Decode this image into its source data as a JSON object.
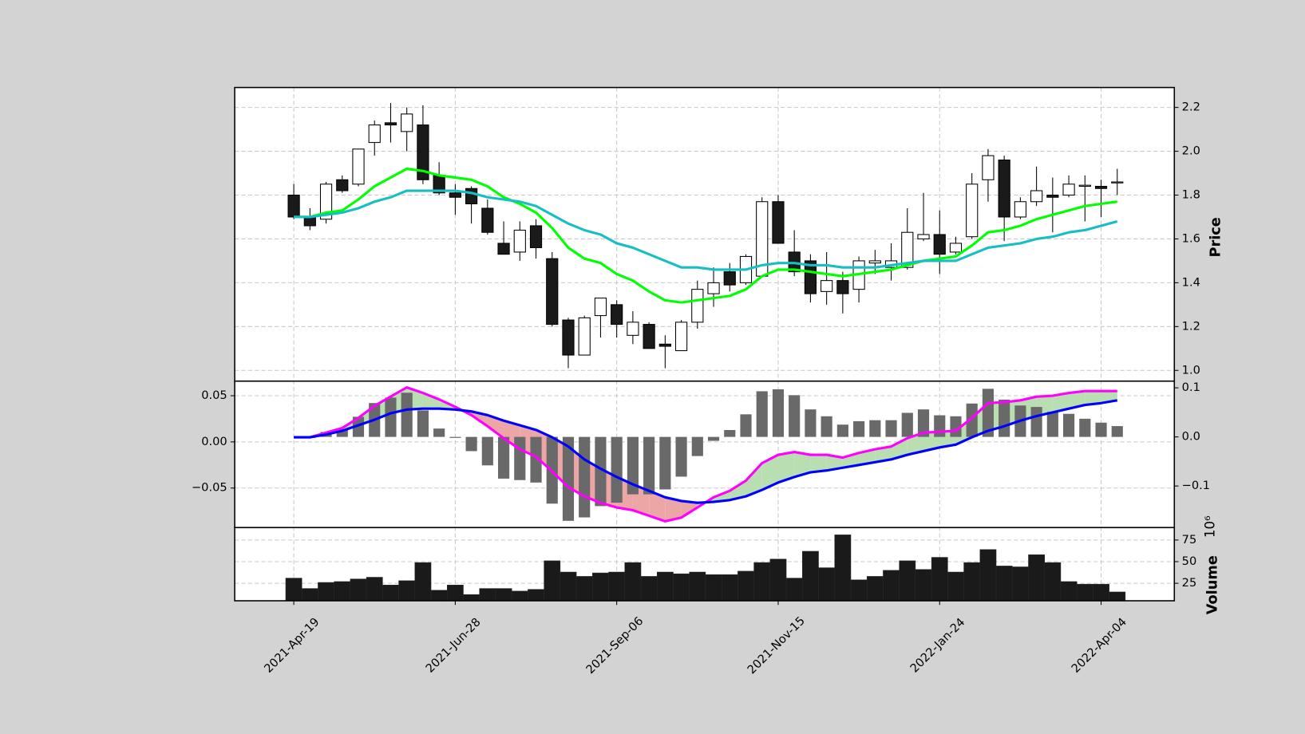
{
  "chart_data": [
    {
      "type": "candlestick",
      "ylabel": "Price",
      "grid": true,
      "categories": [
        "2021-Apr-19",
        null,
        null,
        null,
        null,
        null,
        null,
        null,
        null,
        null,
        "2021-Jun-28",
        null,
        null,
        null,
        null,
        null,
        null,
        null,
        null,
        null,
        "2021-Sep-06",
        null,
        null,
        null,
        null,
        null,
        null,
        null,
        null,
        null,
        "2021-Nov-15",
        null,
        null,
        null,
        null,
        null,
        null,
        null,
        null,
        null,
        "2022-Jan-24",
        null,
        null,
        null,
        null,
        null,
        null,
        null,
        null,
        null,
        "2022-Apr-04",
        null
      ],
      "ylim": [
        0.951,
        2.291
      ],
      "yticks": [
        {
          "value": 1,
          "label": "1.0"
        },
        1.2,
        1.4,
        1.6,
        1.8,
        {
          "value": 2,
          "label": "2.0"
        },
        2.2
      ],
      "up_color": "#ffffff",
      "down_color": "#1a1a1a",
      "open": [
        1.8,
        1.7,
        1.69,
        1.87,
        1.85,
        2.04,
        2.13,
        2.09,
        2.12,
        1.89,
        1.81,
        1.83,
        1.74,
        1.58,
        1.54,
        1.66,
        1.51,
        1.23,
        1.07,
        1.25,
        1.3,
        1.16,
        1.21,
        1.12,
        1.09,
        1.22,
        1.35,
        1.45,
        1.4,
        1.43,
        1.77,
        1.54,
        1.5,
        1.36,
        1.41,
        1.37,
        1.49,
        1.47,
        1.47,
        1.6,
        1.62,
        1.54,
        1.61,
        1.87,
        1.96,
        1.7,
        1.77,
        1.8,
        1.8,
        1.84,
        1.84,
        1.86
      ],
      "high": [
        1.85,
        1.74,
        1.86,
        1.89,
        2.01,
        2.14,
        2.22,
        2.2,
        2.21,
        1.95,
        1.85,
        1.84,
        1.78,
        1.68,
        1.68,
        1.69,
        1.54,
        1.24,
        1.25,
        1.33,
        1.32,
        1.27,
        1.22,
        1.16,
        1.23,
        1.41,
        1.47,
        1.49,
        1.53,
        1.79,
        1.8,
        1.64,
        1.53,
        1.54,
        1.45,
        1.52,
        1.55,
        1.58,
        1.74,
        1.81,
        1.73,
        1.61,
        1.9,
        2.01,
        1.98,
        1.79,
        1.93,
        1.88,
        1.89,
        1.89,
        1.87,
        1.92
      ],
      "low": [
        1.69,
        1.64,
        1.67,
        1.81,
        1.84,
        1.98,
        2.04,
        2.0,
        1.85,
        1.8,
        1.71,
        1.67,
        1.62,
        1.53,
        1.5,
        1.51,
        1.2,
        1.01,
        1.07,
        1.15,
        1.15,
        1.12,
        1.1,
        1.01,
        1.09,
        1.19,
        1.29,
        1.36,
        1.39,
        1.43,
        1.58,
        1.43,
        1.31,
        1.3,
        1.26,
        1.31,
        1.44,
        1.41,
        1.46,
        1.59,
        1.44,
        1.53,
        1.6,
        1.77,
        1.59,
        1.69,
        1.75,
        1.63,
        1.79,
        1.68,
        1.7,
        1.8
      ],
      "close": [
        1.7,
        1.66,
        1.85,
        1.82,
        2.01,
        2.12,
        2.12,
        2.17,
        1.87,
        1.81,
        1.79,
        1.76,
        1.63,
        1.53,
        1.64,
        1.56,
        1.21,
        1.07,
        1.24,
        1.33,
        1.21,
        1.22,
        1.1,
        1.11,
        1.22,
        1.37,
        1.4,
        1.39,
        1.52,
        1.77,
        1.58,
        1.45,
        1.35,
        1.41,
        1.35,
        1.5,
        1.5,
        1.5,
        1.63,
        1.62,
        1.53,
        1.58,
        1.85,
        1.98,
        1.7,
        1.77,
        1.82,
        1.79,
        1.85,
        1.845,
        1.83,
        1.86
      ],
      "series": [
        {
          "color": "#00ff00",
          "values": [
            1.7,
            1.7,
            1.72,
            1.73,
            1.78,
            1.84,
            1.88,
            1.92,
            1.91,
            1.89,
            1.88,
            1.87,
            1.84,
            1.79,
            1.76,
            1.72,
            1.65,
            1.56,
            1.51,
            1.49,
            1.44,
            1.41,
            1.36,
            1.32,
            1.31,
            1.32,
            1.33,
            1.34,
            1.37,
            1.43,
            1.46,
            1.46,
            1.45,
            1.44,
            1.43,
            1.44,
            1.45,
            1.46,
            1.48,
            1.5,
            1.51,
            1.52,
            1.57,
            1.63,
            1.64,
            1.66,
            1.69,
            1.71,
            1.73,
            1.75,
            1.76,
            1.77
          ]
        },
        {
          "color": "#17bfc4",
          "values": [
            1.7,
            1.7,
            1.71,
            1.72,
            1.74,
            1.77,
            1.79,
            1.82,
            1.82,
            1.82,
            1.82,
            1.81,
            1.79,
            1.78,
            1.77,
            1.75,
            1.71,
            1.67,
            1.64,
            1.62,
            1.58,
            1.56,
            1.53,
            1.5,
            1.47,
            1.47,
            1.46,
            1.46,
            1.46,
            1.48,
            1.49,
            1.49,
            1.48,
            1.48,
            1.47,
            1.47,
            1.47,
            1.48,
            1.49,
            1.5,
            1.5,
            1.5,
            1.53,
            1.56,
            1.57,
            1.58,
            1.6,
            1.61,
            1.63,
            1.64,
            1.66,
            1.68
          ]
        }
      ]
    },
    {
      "type": "macd",
      "grid": true,
      "ylim": [
        -0.0928,
        0.0658
      ],
      "yticks": [
        {
          "value": -0.05,
          "label": "−0.05"
        },
        {
          "value": 0,
          "label": "0.00"
        },
        0.05
      ],
      "y2lim": [
        -0.1847,
        0.1136
      ],
      "y2ticks": [
        {
          "value": -0.1,
          "label": "−0.1"
        },
        {
          "value": 0,
          "label": "0.0"
        },
        0.1
      ],
      "fill_up_color": "#b8deb2",
      "fill_down_color": "#eca6a6",
      "series": [
        {
          "color": "#ff00ff",
          "values": [
            0.005,
            0.005,
            0.01,
            0.015,
            0.026,
            0.039,
            0.049,
            0.059,
            0.053,
            0.046,
            0.038,
            0.029,
            0.017,
            0.004,
            -0.008,
            -0.016,
            -0.032,
            -0.049,
            -0.059,
            -0.066,
            -0.071,
            -0.074,
            -0.08,
            -0.086,
            -0.082,
            -0.071,
            -0.06,
            -0.053,
            -0.042,
            -0.023,
            -0.014,
            -0.011,
            -0.014,
            -0.014,
            -0.017,
            -0.012,
            -0.008,
            -0.005,
            0.004,
            0.01,
            0.011,
            0.012,
            0.026,
            0.042,
            0.043,
            0.045,
            0.049,
            0.05,
            0.053,
            0.055,
            0.055,
            0.055
          ]
        },
        {
          "color": "#0000ff",
          "values": [
            0.005,
            0.005,
            0.008,
            0.012,
            0.018,
            0.024,
            0.031,
            0.035,
            0.036,
            0.036,
            0.035,
            0.033,
            0.029,
            0.023,
            0.018,
            0.013,
            0.005,
            -0.005,
            -0.019,
            -0.029,
            -0.038,
            -0.046,
            -0.053,
            -0.06,
            -0.064,
            -0.066,
            -0.065,
            -0.063,
            -0.059,
            -0.052,
            -0.044,
            -0.038,
            -0.033,
            -0.031,
            -0.028,
            -0.025,
            -0.022,
            -0.019,
            -0.014,
            -0.01,
            -0.006,
            -0.003,
            0.005,
            0.012,
            0.017,
            0.023,
            0.028,
            0.032,
            0.036,
            0.04,
            0.042,
            0.045
          ]
        },
        {
          "axis": "y2",
          "color": "#696969",
          "values": [
            0,
            -0.002,
            0.01,
            0.015,
            0.041,
            0.069,
            0.08,
            0.09,
            0.054,
            0.017,
            -0.002,
            -0.029,
            -0.058,
            -0.085,
            -0.088,
            -0.093,
            -0.136,
            -0.171,
            -0.164,
            -0.141,
            -0.134,
            -0.117,
            -0.117,
            -0.107,
            -0.081,
            -0.039,
            -0.008,
            0.014,
            0.046,
            0.093,
            0.097,
            0.085,
            0.056,
            0.042,
            0.025,
            0.032,
            0.034,
            0.034,
            0.049,
            0.056,
            0.044,
            0.042,
            0.068,
            0.098,
            0.076,
            0.064,
            0.061,
            0.051,
            0.047,
            0.037,
            0.029,
            0.022
          ]
        }
      ]
    },
    {
      "type": "bar",
      "ylabel": "Volume",
      "offset_label": "10⁶",
      "grid": true,
      "color": "#1a1a1a",
      "ylim": [
        4.8,
        89.4
      ],
      "yticks": [
        25,
        50,
        75
      ],
      "values": [
        31,
        19,
        26,
        27,
        30,
        32,
        23,
        28,
        49,
        17,
        23,
        12,
        19,
        19,
        16,
        18,
        51,
        38,
        33,
        37,
        38,
        49,
        33,
        38,
        36,
        38,
        35,
        35,
        39,
        49,
        53,
        31,
        62,
        43,
        81,
        29,
        33,
        40,
        51,
        41,
        55,
        38,
        49,
        64,
        45,
        44,
        58,
        49,
        27,
        24,
        24,
        15
      ]
    }
  ]
}
